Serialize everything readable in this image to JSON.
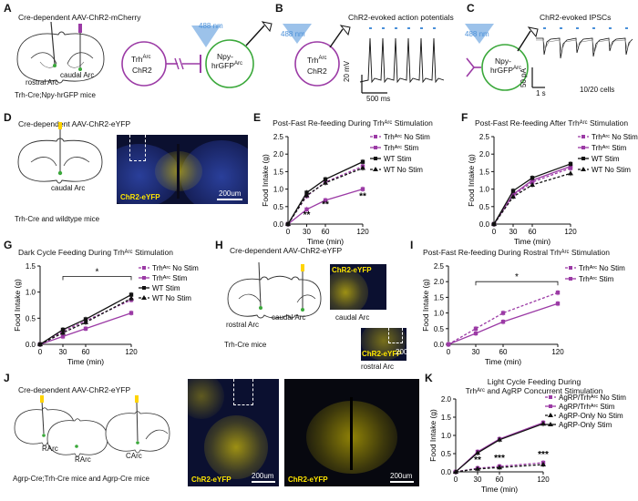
{
  "colors": {
    "purple": "#9b3aa5",
    "green": "#3aa83a",
    "blue": "#4a90d9",
    "black": "#111111",
    "micro_bg": "#0b1030",
    "yellow": "#ffe600"
  },
  "panels": {
    "A": {
      "letter": "A",
      "title": "Cre-dependent AAV-ChR2-mCherry",
      "rostral": "rostral Arc",
      "caudal": "caudal Arc",
      "mice": "Trh-Cre;Npy-hrGFP mice",
      "cell1": "Trh",
      "cell1_sup": "Arc",
      "cell1_line2": "ChR2",
      "cell2_line1": "Npy-",
      "cell2_line2": "hrGFP",
      "cell2_sup": "Arc",
      "light": "488 nm"
    },
    "B": {
      "letter": "B",
      "title": "ChR2-evoked action potentials",
      "light": "488 nm",
      "cell": "Trh",
      "cell_sup": "Arc",
      "cell_line2": "ChR2",
      "scale_v": "20 mV",
      "scale_t": "500 ms"
    },
    "C": {
      "letter": "C",
      "title": "ChR2-evoked IPSCs",
      "light": "488 nm",
      "cell_line1": "Npy-",
      "cell_line2": "hrGFP",
      "cell_sup": "Arc",
      "scale_i": "50 pA",
      "scale_t": "1 s",
      "cells": "10/20 cells"
    },
    "D": {
      "letter": "D",
      "title": "Cre-dependent AAV-ChR2-eYFP",
      "caudal": "caudal Arc",
      "mice": "Trh-Cre and wildtype mice",
      "micro_label": "ChR2-eYFP",
      "scale": "200um"
    },
    "H": {
      "letter": "H",
      "title": "Cre-dependent AAV-ChR2-eYFP",
      "rostral": "rostral Arc",
      "caudal": "caudal Arc",
      "mice": "Trh-Cre mice",
      "micro_top": "ChR2-eYFP",
      "micro_top_sub": "caudal Arc",
      "micro_bot": "ChR2-eYFP",
      "micro_bot_sub": "rostral Arc",
      "scale": "200"
    },
    "J": {
      "letter": "J",
      "title": "Cre-dependent AAV-ChR2-eYFP",
      "rarc1": "RArc",
      "rarc2": "RArc",
      "carc": "CArc",
      "mice": "Agrp-Cre;Trh-Cre mice and Agrp-Cre mice",
      "micro1": "ChR2-eYFP",
      "micro2": "ChR2-eYFP",
      "scale1": "200um",
      "scale2": "200um"
    }
  },
  "chart_data": [
    {
      "id": "E",
      "letter": "E",
      "type": "line",
      "title": "Post-Fast Re-feeding During Trhᴬʳᶜ Stimulation",
      "xlabel": "Time (min)",
      "ylabel": "Food Intake (g)",
      "x": [
        0,
        30,
        60,
        120
      ],
      "ylim": [
        0,
        2.5
      ],
      "yticks": [
        0,
        0.5,
        1.0,
        1.5,
        2.0,
        2.5
      ],
      "series": [
        {
          "name": "Trhᴬʳᶜ No Stim",
          "color": "#9b3aa5",
          "dash": true,
          "marker": "square",
          "values": [
            0,
            0.8,
            1.2,
            1.65
          ]
        },
        {
          "name": "Trhᴬʳᶜ Stim",
          "color": "#9b3aa5",
          "dash": false,
          "marker": "square",
          "values": [
            0,
            0.42,
            0.68,
            1.0
          ]
        },
        {
          "name": "WT Stim",
          "color": "#111111",
          "dash": false,
          "marker": "square",
          "values": [
            0,
            0.9,
            1.28,
            1.78
          ]
        },
        {
          "name": "WT No Stim",
          "color": "#111111",
          "dash": true,
          "marker": "tri",
          "values": [
            0,
            0.82,
            1.18,
            1.6
          ]
        }
      ],
      "annotations": [
        {
          "x": 30,
          "y": 0.18,
          "text": "**"
        },
        {
          "x": 60,
          "y": 0.48,
          "text": "**"
        },
        {
          "x": 120,
          "y": 0.72,
          "text": "**"
        }
      ]
    },
    {
      "id": "F",
      "letter": "F",
      "type": "line",
      "title": "Post-Fast Re-feeding After Trhᴬʳᶜ Stimulation",
      "xlabel": "Time (min)",
      "ylabel": "Food Intake (g)",
      "x": [
        0,
        30,
        60,
        120
      ],
      "ylim": [
        0,
        2.5
      ],
      "yticks": [
        0,
        0.5,
        1.0,
        1.5,
        2.0,
        2.5
      ],
      "series": [
        {
          "name": "Trhᴬʳᶜ No Stim",
          "color": "#9b3aa5",
          "dash": true,
          "marker": "square",
          "values": [
            0,
            0.82,
            1.2,
            1.6
          ]
        },
        {
          "name": "Trhᴬʳᶜ Stim",
          "color": "#9b3aa5",
          "dash": false,
          "marker": "square",
          "values": [
            0,
            0.85,
            1.25,
            1.65
          ]
        },
        {
          "name": "WT Stim",
          "color": "#111111",
          "dash": false,
          "marker": "square",
          "values": [
            0,
            0.95,
            1.32,
            1.72
          ]
        },
        {
          "name": "WT No Stim",
          "color": "#111111",
          "dash": true,
          "marker": "tri",
          "values": [
            0,
            0.78,
            1.12,
            1.45
          ]
        }
      ],
      "annotations": []
    },
    {
      "id": "G",
      "letter": "G",
      "type": "line",
      "title": "Dark Cycle Feeding During Trhᴬʳᶜ Stimulation",
      "xlabel": "Time (min)",
      "ylabel": "Food Intake (g)",
      "x": [
        0,
        30,
        60,
        120
      ],
      "ylim": [
        0,
        1.5
      ],
      "yticks": [
        0,
        0.5,
        1.0,
        1.5
      ],
      "series": [
        {
          "name": "Trhᴬʳᶜ No Stim",
          "color": "#9b3aa5",
          "dash": true,
          "marker": "square",
          "values": [
            0,
            0.25,
            0.45,
            0.85
          ]
        },
        {
          "name": "Trhᴬʳᶜ Stim",
          "color": "#9b3aa5",
          "dash": false,
          "marker": "square",
          "values": [
            0,
            0.15,
            0.3,
            0.6
          ]
        },
        {
          "name": "WT Stim",
          "color": "#111111",
          "dash": false,
          "marker": "square",
          "values": [
            0,
            0.28,
            0.48,
            0.95
          ]
        },
        {
          "name": "WT No Stim",
          "color": "#111111",
          "dash": true,
          "marker": "tri",
          "values": [
            0,
            0.22,
            0.42,
            0.88
          ]
        }
      ],
      "annotations": [
        {
          "bracket": [
            30,
            120
          ],
          "y": 1.3,
          "text": "*"
        }
      ]
    },
    {
      "id": "I",
      "letter": "I",
      "type": "line",
      "title": "Post-Fast Re-feeding During Rostral Trhᴬʳᶜ Stimulation",
      "xlabel": "Time (min)",
      "ylabel": "Food Intake (g)",
      "x": [
        0,
        30,
        60,
        120
      ],
      "ylim": [
        0,
        2.5
      ],
      "yticks": [
        0,
        0.5,
        1.0,
        1.5,
        2.0,
        2.5
      ],
      "series": [
        {
          "name": "Trhᴬʳᶜ No Stim",
          "color": "#9b3aa5",
          "dash": true,
          "marker": "square",
          "values": [
            0,
            0.5,
            1.0,
            1.65
          ]
        },
        {
          "name": "Trhᴬʳᶜ Stim",
          "color": "#9b3aa5",
          "dash": false,
          "marker": "square",
          "values": [
            0,
            0.35,
            0.72,
            1.3
          ]
        }
      ],
      "annotations": [
        {
          "bracket": [
            30,
            120
          ],
          "y": 2.0,
          "text": "*"
        }
      ]
    },
    {
      "id": "K",
      "letter": "K",
      "type": "line",
      "title": "Light Cycle Feeding During",
      "title2": "Trhᴬʳᶜ and AgRP Concurrent Stimulation",
      "xlabel": "Time (min)",
      "ylabel": "Food Intake (g)",
      "x": [
        0,
        30,
        60,
        120
      ],
      "ylim": [
        0,
        2.0
      ],
      "yticks": [
        0,
        0.5,
        1.0,
        1.5,
        2.0
      ],
      "series": [
        {
          "name": "AgRP/Trhᴬʳᶜ No Stim",
          "color": "#9b3aa5",
          "dash": true,
          "marker": "square",
          "values": [
            0,
            0.1,
            0.15,
            0.25
          ]
        },
        {
          "name": "AgRP/Trhᴬʳᶜ Stim",
          "color": "#9b3aa5",
          "dash": false,
          "marker": "square",
          "values": [
            0,
            0.55,
            0.9,
            1.35
          ]
        },
        {
          "name": "AgRP-Only No Stim",
          "color": "#111111",
          "dash": true,
          "marker": "tri",
          "values": [
            0,
            0.08,
            0.12,
            0.2
          ]
        },
        {
          "name": "AgRP-Only Stim",
          "color": "#111111",
          "dash": false,
          "marker": "tri",
          "values": [
            0,
            0.52,
            0.88,
            1.32
          ]
        }
      ],
      "annotations": [
        {
          "x": 30,
          "y": 0.25,
          "text": "**"
        },
        {
          "x": 60,
          "y": 0.3,
          "text": "***"
        },
        {
          "x": 120,
          "y": 0.4,
          "text": "***"
        }
      ]
    }
  ]
}
